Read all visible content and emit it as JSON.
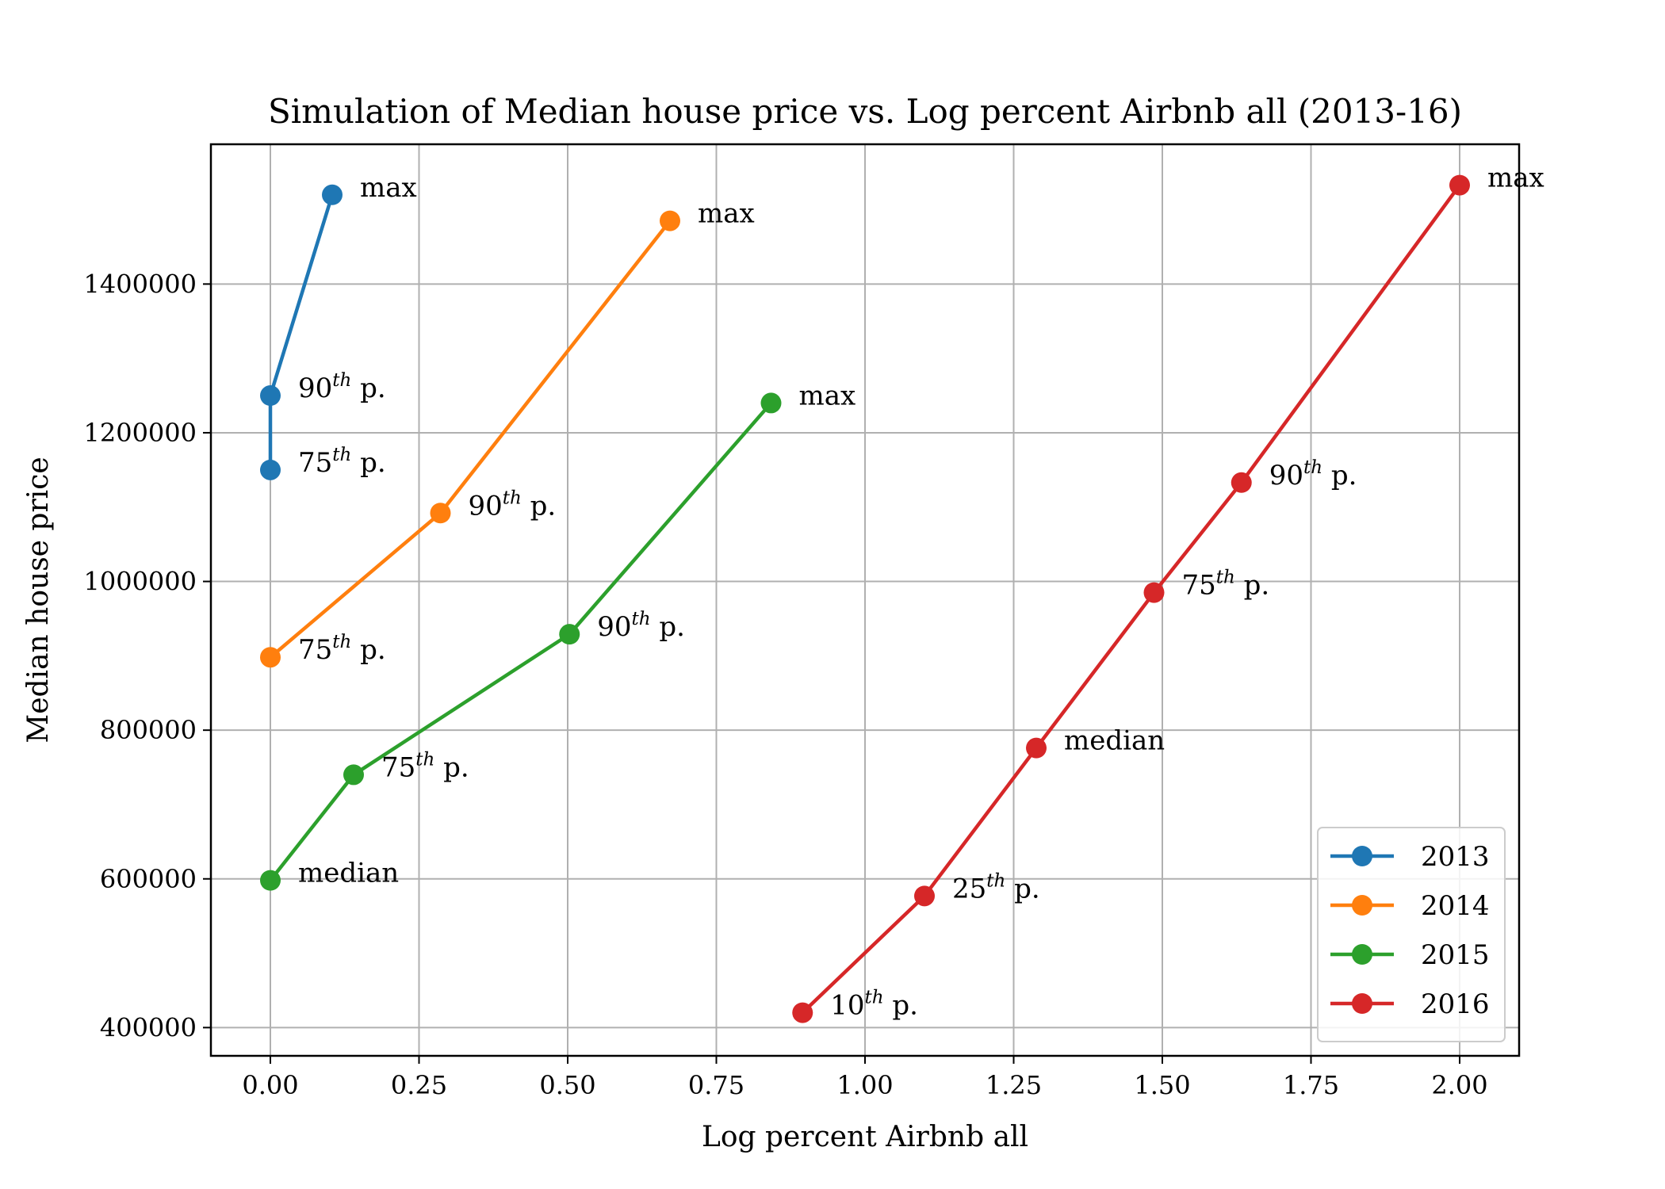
{
  "chart_data": {
    "type": "line",
    "title": "Simulation of Median house price vs. Log percent Airbnb all (2013-16)",
    "xlabel": "Log percent Airbnb all",
    "ylabel": "Median house price",
    "xlim": [
      -0.1,
      2.1
    ],
    "ylim": [
      362000,
      1588000
    ],
    "xticks": [
      0.0,
      0.25,
      0.5,
      0.75,
      1.0,
      1.25,
      1.5,
      1.75,
      2.0
    ],
    "xtick_labels": [
      "0.00",
      "0.25",
      "0.50",
      "0.75",
      "1.00",
      "1.25",
      "1.50",
      "1.75",
      "2.00"
    ],
    "yticks": [
      400000,
      600000,
      800000,
      1000000,
      1200000,
      1400000
    ],
    "ytick_labels": [
      "400000",
      "600000",
      "800000",
      "1000000",
      "1200000",
      "1400000"
    ],
    "grid": true,
    "legend_position": "lower-right",
    "series": [
      {
        "name": "2013",
        "color": "#1f77b4",
        "points": [
          {
            "x": 0.0,
            "y": 1150000,
            "label": "75",
            "sup": "th",
            "suffix": " p."
          },
          {
            "x": 0.0,
            "y": 1250000,
            "label": "90",
            "sup": "th",
            "suffix": " p."
          },
          {
            "x": 0.104,
            "y": 1520000,
            "label": "max",
            "sup": "",
            "suffix": ""
          }
        ]
      },
      {
        "name": "2014",
        "color": "#ff7f0e",
        "points": [
          {
            "x": 0.0,
            "y": 898000,
            "label": "75",
            "sup": "th",
            "suffix": " p."
          },
          {
            "x": 0.286,
            "y": 1092000,
            "label": "90",
            "sup": "th",
            "suffix": " p."
          },
          {
            "x": 0.672,
            "y": 1485000,
            "label": "max",
            "sup": "",
            "suffix": ""
          }
        ]
      },
      {
        "name": "2015",
        "color": "#2ca02c",
        "points": [
          {
            "x": 0.0,
            "y": 598000,
            "label": "median",
            "sup": "",
            "suffix": ""
          },
          {
            "x": 0.14,
            "y": 740000,
            "label": "75",
            "sup": "th",
            "suffix": " p."
          },
          {
            "x": 0.503,
            "y": 929000,
            "label": "90",
            "sup": "th",
            "suffix": " p."
          },
          {
            "x": 0.842,
            "y": 1240000,
            "label": "max",
            "sup": "",
            "suffix": ""
          }
        ]
      },
      {
        "name": "2016",
        "color": "#d62728",
        "points": [
          {
            "x": 0.895,
            "y": 420000,
            "label": "10",
            "sup": "th",
            "suffix": " p."
          },
          {
            "x": 1.1,
            "y": 577000,
            "label": "25",
            "sup": "th",
            "suffix": " p."
          },
          {
            "x": 1.288,
            "y": 776000,
            "label": "median",
            "sup": "",
            "suffix": ""
          },
          {
            "x": 1.486,
            "y": 985000,
            "label": "75",
            "sup": "th",
            "suffix": " p."
          },
          {
            "x": 1.633,
            "y": 1133000,
            "label": "90",
            "sup": "th",
            "suffix": " p."
          },
          {
            "x": 2.0,
            "y": 1533000,
            "label": "max",
            "sup": "",
            "suffix": ""
          }
        ]
      }
    ]
  }
}
